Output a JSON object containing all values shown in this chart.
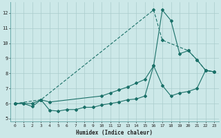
{
  "xlabel": "Humidex (Indice chaleur)",
  "xlim": [
    -0.5,
    23.5
  ],
  "ylim": [
    4.8,
    12.7
  ],
  "yticks": [
    5,
    6,
    7,
    8,
    9,
    10,
    11,
    12
  ],
  "xticks": [
    0,
    1,
    2,
    3,
    4,
    5,
    6,
    7,
    8,
    9,
    10,
    11,
    12,
    13,
    14,
    15,
    16,
    17,
    18,
    19,
    20,
    21,
    22,
    23
  ],
  "bg_color": "#cce8e8",
  "line_color": "#1a7068",
  "grid_color": "#aacccc",
  "line1_x": [
    0,
    1,
    2,
    3,
    4,
    5,
    6,
    7,
    8,
    9,
    10,
    11,
    12,
    13,
    14,
    15,
    16,
    17,
    18,
    19,
    20,
    21,
    22,
    23
  ],
  "line1_y": [
    6.0,
    6.0,
    5.8,
    6.25,
    5.55,
    5.5,
    5.6,
    5.6,
    5.75,
    5.75,
    5.9,
    6.0,
    6.1,
    6.25,
    6.3,
    6.5,
    8.5,
    7.2,
    6.5,
    6.7,
    6.8,
    7.0,
    8.2,
    8.1
  ],
  "line2_x": [
    0,
    1,
    2,
    3,
    4,
    10,
    11,
    12,
    13,
    14,
    15,
    16,
    17,
    18,
    19,
    20,
    21,
    22,
    23
  ],
  "line2_y": [
    6.0,
    6.0,
    6.0,
    6.25,
    6.1,
    6.5,
    6.7,
    6.9,
    7.1,
    7.35,
    7.6,
    8.5,
    12.2,
    11.5,
    9.3,
    9.5,
    8.9,
    8.2,
    8.1
  ],
  "line3_x": [
    0,
    3,
    16,
    17,
    20,
    21,
    22,
    23
  ],
  "line3_y": [
    6.0,
    6.25,
    12.2,
    10.2,
    9.5,
    8.9,
    8.2,
    8.1
  ]
}
